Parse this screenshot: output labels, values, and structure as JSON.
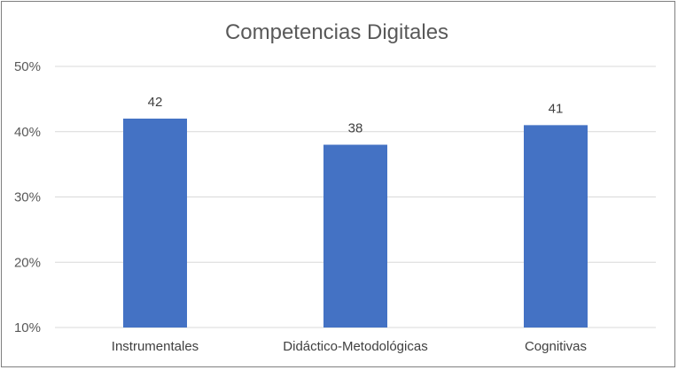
{
  "chart_data": {
    "type": "bar",
    "title": "Competencias Digitales",
    "categories": [
      "Instrumentales",
      "Didáctico-Metodológicas",
      "Cognitivas"
    ],
    "values": [
      42,
      38,
      41
    ],
    "data_labels": [
      "42",
      "38",
      "41"
    ],
    "ylim": [
      10,
      50
    ],
    "yticks": [
      10,
      20,
      30,
      40,
      50
    ],
    "ytick_labels": [
      "10%",
      "20%",
      "30%",
      "40%",
      "50%"
    ],
    "xlabel": "",
    "ylabel": "",
    "grid": true,
    "legend": "none",
    "bar_color": "#4472c4"
  }
}
